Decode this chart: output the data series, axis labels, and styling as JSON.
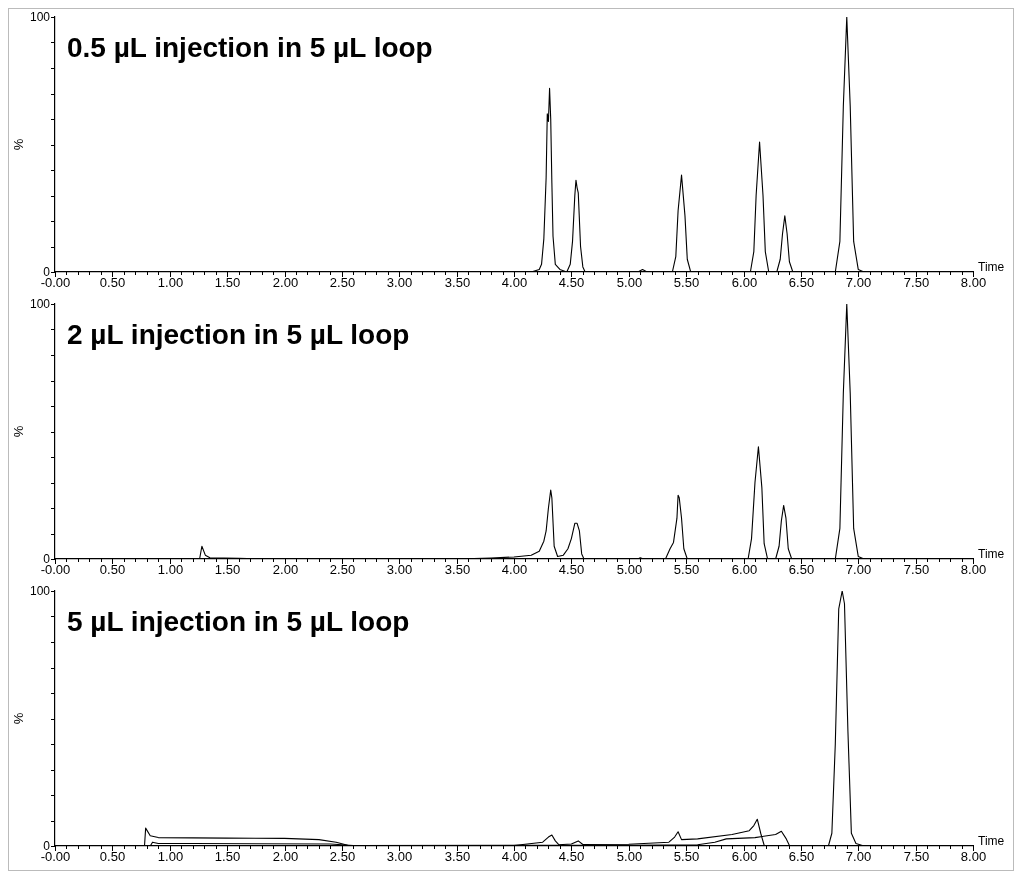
{
  "chart_data": [
    {
      "type": "line",
      "title": "0.5 µL injection in 5 µL loop",
      "xlabel": "Time",
      "ylabel": "%",
      "marker": "none",
      "legend": false,
      "xlim": [
        0,
        8
      ],
      "ylim": [
        0,
        100
      ],
      "xticks": [
        {
          "value": 0,
          "label": "-0.00"
        },
        {
          "value": 0.1,
          "label": null
        },
        {
          "value": 0.2,
          "label": null
        },
        {
          "value": 0.3,
          "label": null
        },
        {
          "value": 0.4,
          "label": null
        },
        {
          "value": 0.5,
          "label": "0.50"
        },
        {
          "value": 0.6,
          "label": null
        },
        {
          "value": 0.7,
          "label": null
        },
        {
          "value": 0.8,
          "label": null
        },
        {
          "value": 0.9,
          "label": null
        },
        {
          "value": 1,
          "label": "1.00"
        },
        {
          "value": 1.1,
          "label": null
        },
        {
          "value": 1.2,
          "label": null
        },
        {
          "value": 1.3,
          "label": null
        },
        {
          "value": 1.4,
          "label": null
        },
        {
          "value": 1.5,
          "label": "1.50"
        },
        {
          "value": 1.6,
          "label": null
        },
        {
          "value": 1.7,
          "label": null
        },
        {
          "value": 1.8,
          "label": null
        },
        {
          "value": 1.9,
          "label": null
        },
        {
          "value": 2,
          "label": "2.00"
        },
        {
          "value": 2.1,
          "label": null
        },
        {
          "value": 2.2,
          "label": null
        },
        {
          "value": 2.3,
          "label": null
        },
        {
          "value": 2.4,
          "label": null
        },
        {
          "value": 2.5,
          "label": "2.50"
        },
        {
          "value": 2.6,
          "label": null
        },
        {
          "value": 2.7,
          "label": null
        },
        {
          "value": 2.8,
          "label": null
        },
        {
          "value": 2.9,
          "label": null
        },
        {
          "value": 3,
          "label": "3.00"
        },
        {
          "value": 3.1,
          "label": null
        },
        {
          "value": 3.2,
          "label": null
        },
        {
          "value": 3.3,
          "label": null
        },
        {
          "value": 3.4,
          "label": null
        },
        {
          "value": 3.5,
          "label": "3.50"
        },
        {
          "value": 3.6,
          "label": null
        },
        {
          "value": 3.7,
          "label": null
        },
        {
          "value": 3.8,
          "label": null
        },
        {
          "value": 3.9,
          "label": null
        },
        {
          "value": 4,
          "label": "4.00"
        },
        {
          "value": 4.1,
          "label": null
        },
        {
          "value": 4.2,
          "label": null
        },
        {
          "value": 4.3,
          "label": null
        },
        {
          "value": 4.4,
          "label": null
        },
        {
          "value": 4.5,
          "label": "4.50"
        },
        {
          "value": 4.6,
          "label": null
        },
        {
          "value": 4.7,
          "label": null
        },
        {
          "value": 4.8,
          "label": null
        },
        {
          "value": 4.9,
          "label": null
        },
        {
          "value": 5,
          "label": "5.00"
        },
        {
          "value": 5.1,
          "label": null
        },
        {
          "value": 5.2,
          "label": null
        },
        {
          "value": 5.3,
          "label": null
        },
        {
          "value": 5.4,
          "label": null
        },
        {
          "value": 5.5,
          "label": "5.50"
        },
        {
          "value": 5.6,
          "label": null
        },
        {
          "value": 5.7,
          "label": null
        },
        {
          "value": 5.8,
          "label": null
        },
        {
          "value": 5.9,
          "label": null
        },
        {
          "value": 6,
          "label": "6.00"
        },
        {
          "value": 6.1,
          "label": null
        },
        {
          "value": 6.2,
          "label": null
        },
        {
          "value": 6.3,
          "label": null
        },
        {
          "value": 6.4,
          "label": null
        },
        {
          "value": 6.5,
          "label": "6.50"
        },
        {
          "value": 6.6,
          "label": null
        },
        {
          "value": 6.7,
          "label": null
        },
        {
          "value": 6.8,
          "label": null
        },
        {
          "value": 6.9,
          "label": null
        },
        {
          "value": 7,
          "label": "7.00"
        },
        {
          "value": 7.1,
          "label": null
        },
        {
          "value": 7.2,
          "label": null
        },
        {
          "value": 7.3,
          "label": null
        },
        {
          "value": 7.4,
          "label": null
        },
        {
          "value": 7.5,
          "label": "7.50"
        },
        {
          "value": 7.6,
          "label": null
        },
        {
          "value": 7.7,
          "label": null
        },
        {
          "value": 7.8,
          "label": null
        },
        {
          "value": 7.9,
          "label": null
        },
        {
          "value": 8,
          "label": "8.00"
        }
      ],
      "yticks": [
        {
          "value": 0,
          "label": "0"
        },
        {
          "value": 10,
          "label": null
        },
        {
          "value": 20,
          "label": null
        },
        {
          "value": 30,
          "label": null
        },
        {
          "value": 40,
          "label": null
        },
        {
          "value": 50,
          "label": null
        },
        {
          "value": 60,
          "label": null
        },
        {
          "value": 70,
          "label": null
        },
        {
          "value": 80,
          "label": null
        },
        {
          "value": 90,
          "label": null
        },
        {
          "value": 100,
          "label": "100"
        }
      ],
      "series": [
        {
          "color": "#000000",
          "x": [
            0,
            4.15,
            4.22,
            4.24,
            4.26,
            4.28,
            4.29,
            4.3,
            4.31,
            4.32,
            4.33,
            4.34,
            4.36,
            4.4,
            4.46,
            4.49,
            4.51,
            4.53,
            4.54,
            4.55,
            4.56,
            4.58,
            4.6,
            4.62,
            5.08,
            5.12,
            5.16,
            5.38,
            5.41,
            5.43,
            5.46,
            5.49,
            5.51,
            5.54,
            6.06,
            6.09,
            6.11,
            6.14,
            6.17,
            6.19,
            6.22,
            6.29,
            6.32,
            6.34,
            6.36,
            6.38,
            6.4,
            6.43,
            6.8,
            6.84,
            6.87,
            6.9,
            6.93,
            6.96,
            7,
            7.05,
            8
          ],
          "values": [
            0,
            0,
            1,
            3,
            13,
            37,
            62,
            59,
            72,
            60,
            35,
            14,
            3,
            1,
            0,
            3,
            12,
            30,
            36,
            33,
            31,
            10,
            2,
            0,
            0,
            1,
            0,
            0,
            6,
            24,
            38,
            22,
            5,
            0,
            0,
            8,
            30,
            51,
            30,
            8,
            0,
            0,
            5,
            15,
            22,
            15,
            4,
            0,
            0,
            12,
            65,
            100,
            65,
            12,
            1,
            0,
            0
          ]
        }
      ]
    },
    {
      "type": "line",
      "title": "2 µL injection in 5 µL loop",
      "xlabel": "Time",
      "ylabel": "%",
      "marker": "none",
      "legend": false,
      "xlim": [
        0,
        8
      ],
      "ylim": [
        0,
        100
      ],
      "xticks": [
        {
          "value": 0,
          "label": "-0.00"
        },
        {
          "value": 0.1,
          "label": null
        },
        {
          "value": 0.2,
          "label": null
        },
        {
          "value": 0.3,
          "label": null
        },
        {
          "value": 0.4,
          "label": null
        },
        {
          "value": 0.5,
          "label": "0.50"
        },
        {
          "value": 0.6,
          "label": null
        },
        {
          "value": 0.7,
          "label": null
        },
        {
          "value": 0.8,
          "label": null
        },
        {
          "value": 0.9,
          "label": null
        },
        {
          "value": 1,
          "label": "1.00"
        },
        {
          "value": 1.1,
          "label": null
        },
        {
          "value": 1.2,
          "label": null
        },
        {
          "value": 1.3,
          "label": null
        },
        {
          "value": 1.4,
          "label": null
        },
        {
          "value": 1.5,
          "label": "1.50"
        },
        {
          "value": 1.6,
          "label": null
        },
        {
          "value": 1.7,
          "label": null
        },
        {
          "value": 1.8,
          "label": null
        },
        {
          "value": 1.9,
          "label": null
        },
        {
          "value": 2,
          "label": "2.00"
        },
        {
          "value": 2.1,
          "label": null
        },
        {
          "value": 2.2,
          "label": null
        },
        {
          "value": 2.3,
          "label": null
        },
        {
          "value": 2.4,
          "label": null
        },
        {
          "value": 2.5,
          "label": "2.50"
        },
        {
          "value": 2.6,
          "label": null
        },
        {
          "value": 2.7,
          "label": null
        },
        {
          "value": 2.8,
          "label": null
        },
        {
          "value": 2.9,
          "label": null
        },
        {
          "value": 3,
          "label": "3.00"
        },
        {
          "value": 3.1,
          "label": null
        },
        {
          "value": 3.2,
          "label": null
        },
        {
          "value": 3.3,
          "label": null
        },
        {
          "value": 3.4,
          "label": null
        },
        {
          "value": 3.5,
          "label": "3.50"
        },
        {
          "value": 3.6,
          "label": null
        },
        {
          "value": 3.7,
          "label": null
        },
        {
          "value": 3.8,
          "label": null
        },
        {
          "value": 3.9,
          "label": null
        },
        {
          "value": 4,
          "label": "4.00"
        },
        {
          "value": 4.1,
          "label": null
        },
        {
          "value": 4.2,
          "label": null
        },
        {
          "value": 4.3,
          "label": null
        },
        {
          "value": 4.4,
          "label": null
        },
        {
          "value": 4.5,
          "label": "4.50"
        },
        {
          "value": 4.6,
          "label": null
        },
        {
          "value": 4.7,
          "label": null
        },
        {
          "value": 4.8,
          "label": null
        },
        {
          "value": 4.9,
          "label": null
        },
        {
          "value": 5,
          "label": "5.00"
        },
        {
          "value": 5.1,
          "label": null
        },
        {
          "value": 5.2,
          "label": null
        },
        {
          "value": 5.3,
          "label": null
        },
        {
          "value": 5.4,
          "label": null
        },
        {
          "value": 5.5,
          "label": "5.50"
        },
        {
          "value": 5.6,
          "label": null
        },
        {
          "value": 5.7,
          "label": null
        },
        {
          "value": 5.8,
          "label": null
        },
        {
          "value": 5.9,
          "label": null
        },
        {
          "value": 6,
          "label": "6.00"
        },
        {
          "value": 6.1,
          "label": null
        },
        {
          "value": 6.2,
          "label": null
        },
        {
          "value": 6.3,
          "label": null
        },
        {
          "value": 6.4,
          "label": null
        },
        {
          "value": 6.5,
          "label": "6.50"
        },
        {
          "value": 6.6,
          "label": null
        },
        {
          "value": 6.7,
          "label": null
        },
        {
          "value": 6.8,
          "label": null
        },
        {
          "value": 6.9,
          "label": null
        },
        {
          "value": 7,
          "label": "7.00"
        },
        {
          "value": 7.1,
          "label": null
        },
        {
          "value": 7.2,
          "label": null
        },
        {
          "value": 7.3,
          "label": null
        },
        {
          "value": 7.4,
          "label": null
        },
        {
          "value": 7.5,
          "label": "7.50"
        },
        {
          "value": 7.6,
          "label": null
        },
        {
          "value": 7.7,
          "label": null
        },
        {
          "value": 7.8,
          "label": null
        },
        {
          "value": 7.9,
          "label": null
        },
        {
          "value": 8,
          "label": "8.00"
        }
      ],
      "yticks": [
        {
          "value": 0,
          "label": "0"
        },
        {
          "value": 10,
          "label": null
        },
        {
          "value": 20,
          "label": null
        },
        {
          "value": 30,
          "label": null
        },
        {
          "value": 40,
          "label": null
        },
        {
          "value": 50,
          "label": null
        },
        {
          "value": 60,
          "label": null
        },
        {
          "value": 70,
          "label": null
        },
        {
          "value": 80,
          "label": null
        },
        {
          "value": 90,
          "label": null
        },
        {
          "value": 100,
          "label": "100"
        }
      ],
      "series": [
        {
          "color": "#000000",
          "x": [
            0,
            1.26,
            1.28,
            1.31,
            1.35,
            1.6,
            1.8,
            3.5,
            3.8,
            4,
            4.15,
            4.22,
            4.26,
            4.28,
            4.3,
            4.32,
            4.33,
            4.35,
            4.38,
            4.43,
            4.47,
            4.5,
            4.53,
            4.55,
            4.57,
            4.59,
            4.61,
            5.08,
            5.1,
            5.13,
            5.32,
            5.36,
            5.39,
            5.42,
            5.43,
            5.44,
            5.46,
            5.48,
            5.51,
            6.04,
            6.07,
            6.1,
            6.13,
            6.16,
            6.18,
            6.21,
            6.28,
            6.31,
            6.33,
            6.35,
            6.37,
            6.39,
            6.42,
            6.8,
            6.84,
            6.87,
            6.9,
            6.93,
            6.96,
            7,
            7.05,
            8
          ],
          "values": [
            0,
            0,
            5,
            1.5,
            0.5,
            0.3,
            0,
            0,
            0.4,
            0.8,
            1.5,
            3,
            7,
            11,
            20,
            27,
            24,
            5,
            1,
            1.5,
            4,
            8,
            14,
            14,
            11,
            2,
            0,
            0,
            0.5,
            0,
            0,
            4,
            6.5,
            16,
            25,
            24,
            16,
            4,
            0,
            0,
            8,
            30,
            44,
            28,
            6,
            0,
            0,
            5,
            15,
            21,
            16,
            4,
            0,
            0,
            12,
            65,
            100,
            65,
            12,
            1,
            0,
            0
          ]
        }
      ]
    },
    {
      "type": "line",
      "title": "5 µL injection in 5 µL loop",
      "xlabel": "Time",
      "ylabel": "%",
      "marker": "none",
      "legend": false,
      "xlim": [
        0,
        8
      ],
      "ylim": [
        0,
        100
      ],
      "xticks": [
        {
          "value": 0,
          "label": "-0.00"
        },
        {
          "value": 0.1,
          "label": null
        },
        {
          "value": 0.2,
          "label": null
        },
        {
          "value": 0.3,
          "label": null
        },
        {
          "value": 0.4,
          "label": null
        },
        {
          "value": 0.5,
          "label": "0.50"
        },
        {
          "value": 0.6,
          "label": null
        },
        {
          "value": 0.7,
          "label": null
        },
        {
          "value": 0.8,
          "label": null
        },
        {
          "value": 0.9,
          "label": null
        },
        {
          "value": 1,
          "label": "1.00"
        },
        {
          "value": 1.1,
          "label": null
        },
        {
          "value": 1.2,
          "label": null
        },
        {
          "value": 1.3,
          "label": null
        },
        {
          "value": 1.4,
          "label": null
        },
        {
          "value": 1.5,
          "label": "1.50"
        },
        {
          "value": 1.6,
          "label": null
        },
        {
          "value": 1.7,
          "label": null
        },
        {
          "value": 1.8,
          "label": null
        },
        {
          "value": 1.9,
          "label": null
        },
        {
          "value": 2,
          "label": "2.00"
        },
        {
          "value": 2.1,
          "label": null
        },
        {
          "value": 2.2,
          "label": null
        },
        {
          "value": 2.3,
          "label": null
        },
        {
          "value": 2.4,
          "label": null
        },
        {
          "value": 2.5,
          "label": "2.50"
        },
        {
          "value": 2.6,
          "label": null
        },
        {
          "value": 2.7,
          "label": null
        },
        {
          "value": 2.8,
          "label": null
        },
        {
          "value": 2.9,
          "label": null
        },
        {
          "value": 3,
          "label": "3.00"
        },
        {
          "value": 3.1,
          "label": null
        },
        {
          "value": 3.2,
          "label": null
        },
        {
          "value": 3.3,
          "label": null
        },
        {
          "value": 3.4,
          "label": null
        },
        {
          "value": 3.5,
          "label": "3.50"
        },
        {
          "value": 3.6,
          "label": null
        },
        {
          "value": 3.7,
          "label": null
        },
        {
          "value": 3.8,
          "label": null
        },
        {
          "value": 3.9,
          "label": null
        },
        {
          "value": 4,
          "label": "4.00"
        },
        {
          "value": 4.1,
          "label": null
        },
        {
          "value": 4.2,
          "label": null
        },
        {
          "value": 4.3,
          "label": null
        },
        {
          "value": 4.4,
          "label": null
        },
        {
          "value": 4.5,
          "label": "4.50"
        },
        {
          "value": 4.6,
          "label": null
        },
        {
          "value": 4.7,
          "label": null
        },
        {
          "value": 4.8,
          "label": null
        },
        {
          "value": 4.9,
          "label": null
        },
        {
          "value": 5,
          "label": "5.00"
        },
        {
          "value": 5.1,
          "label": null
        },
        {
          "value": 5.2,
          "label": null
        },
        {
          "value": 5.3,
          "label": null
        },
        {
          "value": 5.4,
          "label": null
        },
        {
          "value": 5.5,
          "label": "5.50"
        },
        {
          "value": 5.6,
          "label": null
        },
        {
          "value": 5.7,
          "label": null
        },
        {
          "value": 5.8,
          "label": null
        },
        {
          "value": 5.9,
          "label": null
        },
        {
          "value": 6,
          "label": "6.00"
        },
        {
          "value": 6.1,
          "label": null
        },
        {
          "value": 6.2,
          "label": null
        },
        {
          "value": 6.3,
          "label": null
        },
        {
          "value": 6.4,
          "label": null
        },
        {
          "value": 6.5,
          "label": "6.50"
        },
        {
          "value": 6.6,
          "label": null
        },
        {
          "value": 6.7,
          "label": null
        },
        {
          "value": 6.8,
          "label": null
        },
        {
          "value": 6.9,
          "label": null
        },
        {
          "value": 7,
          "label": "7.00"
        },
        {
          "value": 7.1,
          "label": null
        },
        {
          "value": 7.2,
          "label": null
        },
        {
          "value": 7.3,
          "label": null
        },
        {
          "value": 7.4,
          "label": null
        },
        {
          "value": 7.5,
          "label": "7.50"
        },
        {
          "value": 7.6,
          "label": null
        },
        {
          "value": 7.7,
          "label": null
        },
        {
          "value": 7.8,
          "label": null
        },
        {
          "value": 7.9,
          "label": null
        },
        {
          "value": 8,
          "label": "8.00"
        }
      ],
      "yticks": [
        {
          "value": 0,
          "label": "0"
        },
        {
          "value": 10,
          "label": null
        },
        {
          "value": 20,
          "label": null
        },
        {
          "value": 30,
          "label": null
        },
        {
          "value": 40,
          "label": null
        },
        {
          "value": 50,
          "label": null
        },
        {
          "value": 60,
          "label": null
        },
        {
          "value": 70,
          "label": null
        },
        {
          "value": 80,
          "label": null
        },
        {
          "value": 90,
          "label": null
        },
        {
          "value": 100,
          "label": "100"
        }
      ],
      "series": [
        {
          "color": "#000000",
          "x": [
            0,
            0.78,
            0.79,
            0.83,
            0.9,
            1.5,
            2,
            2.3,
            2.45,
            2.55,
            3,
            4,
            4.25,
            4.3,
            4.33,
            4.36,
            4.39,
            4.5,
            4.56,
            4.6,
            5,
            5.35,
            5.4,
            5.43,
            5.46,
            5.6,
            5.9,
            6.05,
            6.09,
            6.12,
            6.15,
            6.18,
            6.25,
            6.74,
            6.77,
            6.8,
            6.83,
            6.86,
            6.88,
            6.91,
            6.94,
            6.98,
            7.05,
            8
          ],
          "values": [
            0,
            0,
            7,
            4,
            3.3,
            3.1,
            3,
            2.5,
            1.5,
            0.3,
            0,
            0.2,
            1.5,
            3.5,
            4.3,
            2,
            0.5,
            0.8,
            2,
            0.6,
            0.7,
            1.5,
            3.5,
            5.6,
            2.5,
            2.8,
            4.5,
            6,
            8,
            10.5,
            5,
            0.3,
            0,
            0,
            5,
            40,
            93,
            100,
            95,
            45,
            5,
            1,
            0,
            0
          ]
        },
        {
          "color": "#000000",
          "x": [
            0.83,
            0.85,
            0.9,
            1.2,
            2.4,
            2.6,
            5,
            5.6,
            5.75,
            5.85,
            6.1,
            6.28,
            6.33,
            6.37,
            6.4,
            6.5
          ],
          "values": [
            0,
            1.5,
            1,
            1,
            0.8,
            0.2,
            0.3,
            0.5,
            1.5,
            2.8,
            3.3,
            4.5,
            5.8,
            3,
            0.2,
            0
          ]
        }
      ]
    }
  ]
}
